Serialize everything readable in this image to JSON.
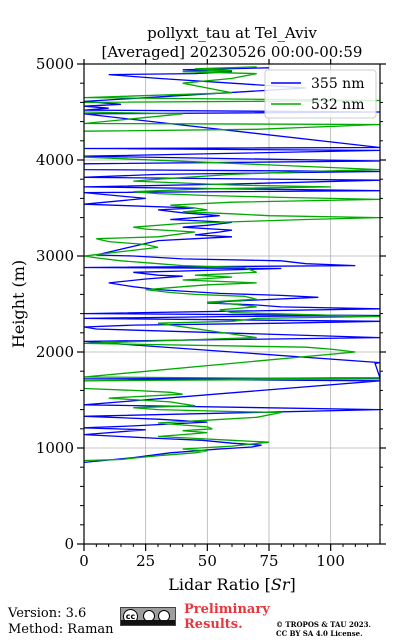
{
  "chart_data": {
    "type": "line",
    "title_line1": "pollyxt_tau at Tel_Aviv",
    "title_line2": "[Averaged] 20230526 00:00-00:59",
    "xlabel": "Lidar Ratio [",
    "xlabel_unit": "Sr",
    "xlabel_close": "]",
    "ylabel": "Height (m)",
    "xlim": [
      0,
      120
    ],
    "ylim": [
      0,
      5000
    ],
    "x_ticks": [
      0,
      25,
      50,
      75,
      100
    ],
    "x_tick_labels": [
      "0",
      "25",
      "50",
      "75",
      "100"
    ],
    "y_ticks": [
      0,
      1000,
      2000,
      3000,
      4000,
      5000
    ],
    "y_tick_labels": [
      "0",
      "1000",
      "2000",
      "3000",
      "4000",
      "5000"
    ],
    "grid": true,
    "legend_position": "top-right",
    "series": [
      {
        "name": "355 nm",
        "color": "#0000ff",
        "points": [
          [
            0,
            850
          ],
          [
            8,
            870
          ],
          [
            20,
            900
          ],
          [
            35,
            950
          ],
          [
            55,
            990
          ],
          [
            68,
            1010
          ],
          [
            72,
            1030
          ],
          [
            60,
            1050
          ],
          [
            48,
            1080
          ],
          [
            30,
            1100
          ],
          [
            15,
            1120
          ],
          [
            0,
            1140
          ],
          [
            25,
            1190
          ],
          [
            0,
            1210
          ],
          [
            20,
            1230
          ],
          [
            50,
            1270
          ],
          [
            30,
            1300
          ],
          [
            0,
            1330
          ],
          [
            120,
            1400
          ],
          [
            0,
            1450
          ],
          [
            120,
            1700
          ],
          [
            0,
            1720
          ],
          [
            120,
            1730
          ],
          [
            118,
            1880
          ],
          [
            120,
            1890
          ],
          [
            0,
            2110
          ],
          [
            60,
            2130
          ],
          [
            120,
            2150
          ],
          [
            5,
            2240
          ],
          [
            0,
            2260
          ],
          [
            20,
            2280
          ],
          [
            80,
            2300
          ],
          [
            120,
            2320
          ],
          [
            0,
            2350
          ],
          [
            60,
            2370
          ],
          [
            120,
            2380
          ],
          [
            0,
            2400
          ],
          [
            120,
            2450
          ],
          [
            80,
            2470
          ],
          [
            70,
            2490
          ],
          [
            50,
            2510
          ],
          [
            60,
            2530
          ],
          [
            95,
            2570
          ],
          [
            80,
            2590
          ],
          [
            55,
            2610
          ],
          [
            30,
            2650
          ],
          [
            20,
            2680
          ],
          [
            10,
            2720
          ],
          [
            25,
            2760
          ],
          [
            40,
            2790
          ],
          [
            30,
            2800
          ],
          [
            20,
            2830
          ],
          [
            50,
            2850
          ],
          [
            80,
            2870
          ],
          [
            0,
            2880
          ],
          [
            110,
            2900
          ],
          [
            90,
            2920
          ],
          [
            80,
            2950
          ],
          [
            40,
            2970
          ],
          [
            20,
            3000
          ],
          [
            5,
            3010
          ],
          [
            30,
            3160
          ],
          [
            45,
            3180
          ],
          [
            60,
            3200
          ],
          [
            45,
            3220
          ],
          [
            55,
            3250
          ],
          [
            60,
            3270
          ],
          [
            40,
            3300
          ],
          [
            50,
            3320
          ],
          [
            60,
            3350
          ],
          [
            35,
            3380
          ],
          [
            45,
            3400
          ],
          [
            55,
            3420
          ],
          [
            40,
            3450
          ],
          [
            30,
            3480
          ],
          [
            45,
            3500
          ],
          [
            0,
            3540
          ],
          [
            25,
            3600
          ],
          [
            0,
            3660
          ],
          [
            120,
            3680
          ],
          [
            0,
            3720
          ],
          [
            60,
            3750
          ],
          [
            120,
            3790
          ],
          [
            0,
            3820
          ],
          [
            30,
            3850
          ],
          [
            120,
            3880
          ],
          [
            0,
            3900
          ],
          [
            0,
            3960
          ],
          [
            120,
            3990
          ],
          [
            0,
            4040
          ],
          [
            120,
            4100
          ],
          [
            0,
            4120
          ],
          [
            120,
            4130
          ],
          [
            0,
            4480
          ],
          [
            120,
            4500
          ],
          [
            0,
            4520
          ],
          [
            10,
            4540
          ],
          [
            0,
            4560
          ],
          [
            15,
            4580
          ],
          [
            0,
            4610
          ],
          [
            90,
            4750
          ],
          [
            60,
            4800
          ],
          [
            30,
            4850
          ],
          [
            20,
            4870
          ],
          [
            15,
            4880
          ],
          [
            10,
            4890
          ],
          [
            45,
            4900
          ],
          [
            60,
            4920
          ],
          [
            40,
            4940
          ],
          [
            75,
            4960
          ]
        ]
      },
      {
        "name": "532 nm",
        "color": "#00aa00",
        "points": [
          [
            0,
            870
          ],
          [
            15,
            880
          ],
          [
            22,
            900
          ],
          [
            30,
            920
          ],
          [
            45,
            950
          ],
          [
            50,
            970
          ],
          [
            40,
            990
          ],
          [
            60,
            1020
          ],
          [
            75,
            1060
          ],
          [
            60,
            1080
          ],
          [
            45,
            1100
          ],
          [
            30,
            1120
          ],
          [
            40,
            1140
          ],
          [
            50,
            1160
          ],
          [
            40,
            1180
          ],
          [
            52,
            1200
          ],
          [
            50,
            1220
          ],
          [
            40,
            1240
          ],
          [
            30,
            1260
          ],
          [
            50,
            1290
          ],
          [
            70,
            1320
          ],
          [
            80,
            1370
          ],
          [
            60,
            1380
          ],
          [
            30,
            1400
          ],
          [
            20,
            1420
          ],
          [
            45,
            1440
          ],
          [
            35,
            1480
          ],
          [
            10,
            1520
          ],
          [
            40,
            1560
          ],
          [
            35,
            1580
          ],
          [
            20,
            1600
          ],
          [
            0,
            1620
          ],
          [
            0,
            1700
          ],
          [
            120,
            1720
          ],
          [
            0,
            1740
          ],
          [
            110,
            2000
          ],
          [
            100,
            2030
          ],
          [
            90,
            2050
          ],
          [
            0,
            2090
          ],
          [
            70,
            2150
          ],
          [
            30,
            2300
          ],
          [
            60,
            2320
          ],
          [
            70,
            2350
          ],
          [
            120,
            2370
          ],
          [
            60,
            2410
          ],
          [
            55,
            2440
          ],
          [
            70,
            2470
          ],
          [
            60,
            2500
          ],
          [
            50,
            2520
          ],
          [
            70,
            2550
          ],
          [
            65,
            2580
          ],
          [
            45,
            2600
          ],
          [
            35,
            2620
          ],
          [
            25,
            2650
          ],
          [
            40,
            2680
          ],
          [
            50,
            2700
          ],
          [
            70,
            2720
          ],
          [
            40,
            2750
          ],
          [
            60,
            2780
          ],
          [
            45,
            2800
          ],
          [
            70,
            2830
          ],
          [
            65,
            2880
          ],
          [
            40,
            2900
          ],
          [
            25,
            2930
          ],
          [
            15,
            2950
          ],
          [
            5,
            2980
          ],
          [
            0,
            3000
          ],
          [
            30,
            3090
          ],
          [
            25,
            3120
          ],
          [
            10,
            3150
          ],
          [
            5,
            3180
          ],
          [
            30,
            3200
          ],
          [
            45,
            3250
          ],
          [
            25,
            3280
          ],
          [
            20,
            3300
          ],
          [
            40,
            3340
          ],
          [
            90,
            3380
          ],
          [
            120,
            3400
          ],
          [
            75,
            3420
          ],
          [
            60,
            3440
          ],
          [
            40,
            3460
          ],
          [
            50,
            3480
          ],
          [
            45,
            3500
          ],
          [
            35,
            3530
          ],
          [
            60,
            3560
          ],
          [
            120,
            3590
          ],
          [
            80,
            3610
          ],
          [
            50,
            3630
          ],
          [
            30,
            3650
          ],
          [
            20,
            3670
          ],
          [
            50,
            3700
          ],
          [
            100,
            3720
          ],
          [
            60,
            3740
          ],
          [
            40,
            3760
          ],
          [
            20,
            3780
          ],
          [
            30,
            3800
          ],
          [
            60,
            3850
          ],
          [
            90,
            3880
          ],
          [
            120,
            3900
          ],
          [
            0,
            4030
          ],
          [
            0,
            4100
          ],
          [
            0,
            4300
          ],
          [
            70,
            4320
          ],
          [
            90,
            4340
          ],
          [
            120,
            4370
          ],
          [
            0,
            4380
          ],
          [
            40,
            4480
          ],
          [
            0,
            4500
          ],
          [
            0,
            4600
          ],
          [
            120,
            4620
          ],
          [
            0,
            4650
          ],
          [
            60,
            4700
          ],
          [
            50,
            4750
          ],
          [
            40,
            4800
          ],
          [
            60,
            4850
          ],
          [
            70,
            4900
          ],
          [
            40,
            4920
          ],
          [
            60,
            4930
          ],
          [
            45,
            4950
          ],
          [
            70,
            4970
          ]
        ]
      }
    ]
  },
  "footer": {
    "version": "Version: 3.6",
    "method": "Method: Raman",
    "preliminary_line1": "Preliminary",
    "preliminary_line2": "Results.",
    "copyright_line1": "© TROPOS & TAU 2023.",
    "copyright_line2": "CC BY SA 4.0 License.",
    "license_badge_icon": "cc-by-sa-badge-icon"
  }
}
